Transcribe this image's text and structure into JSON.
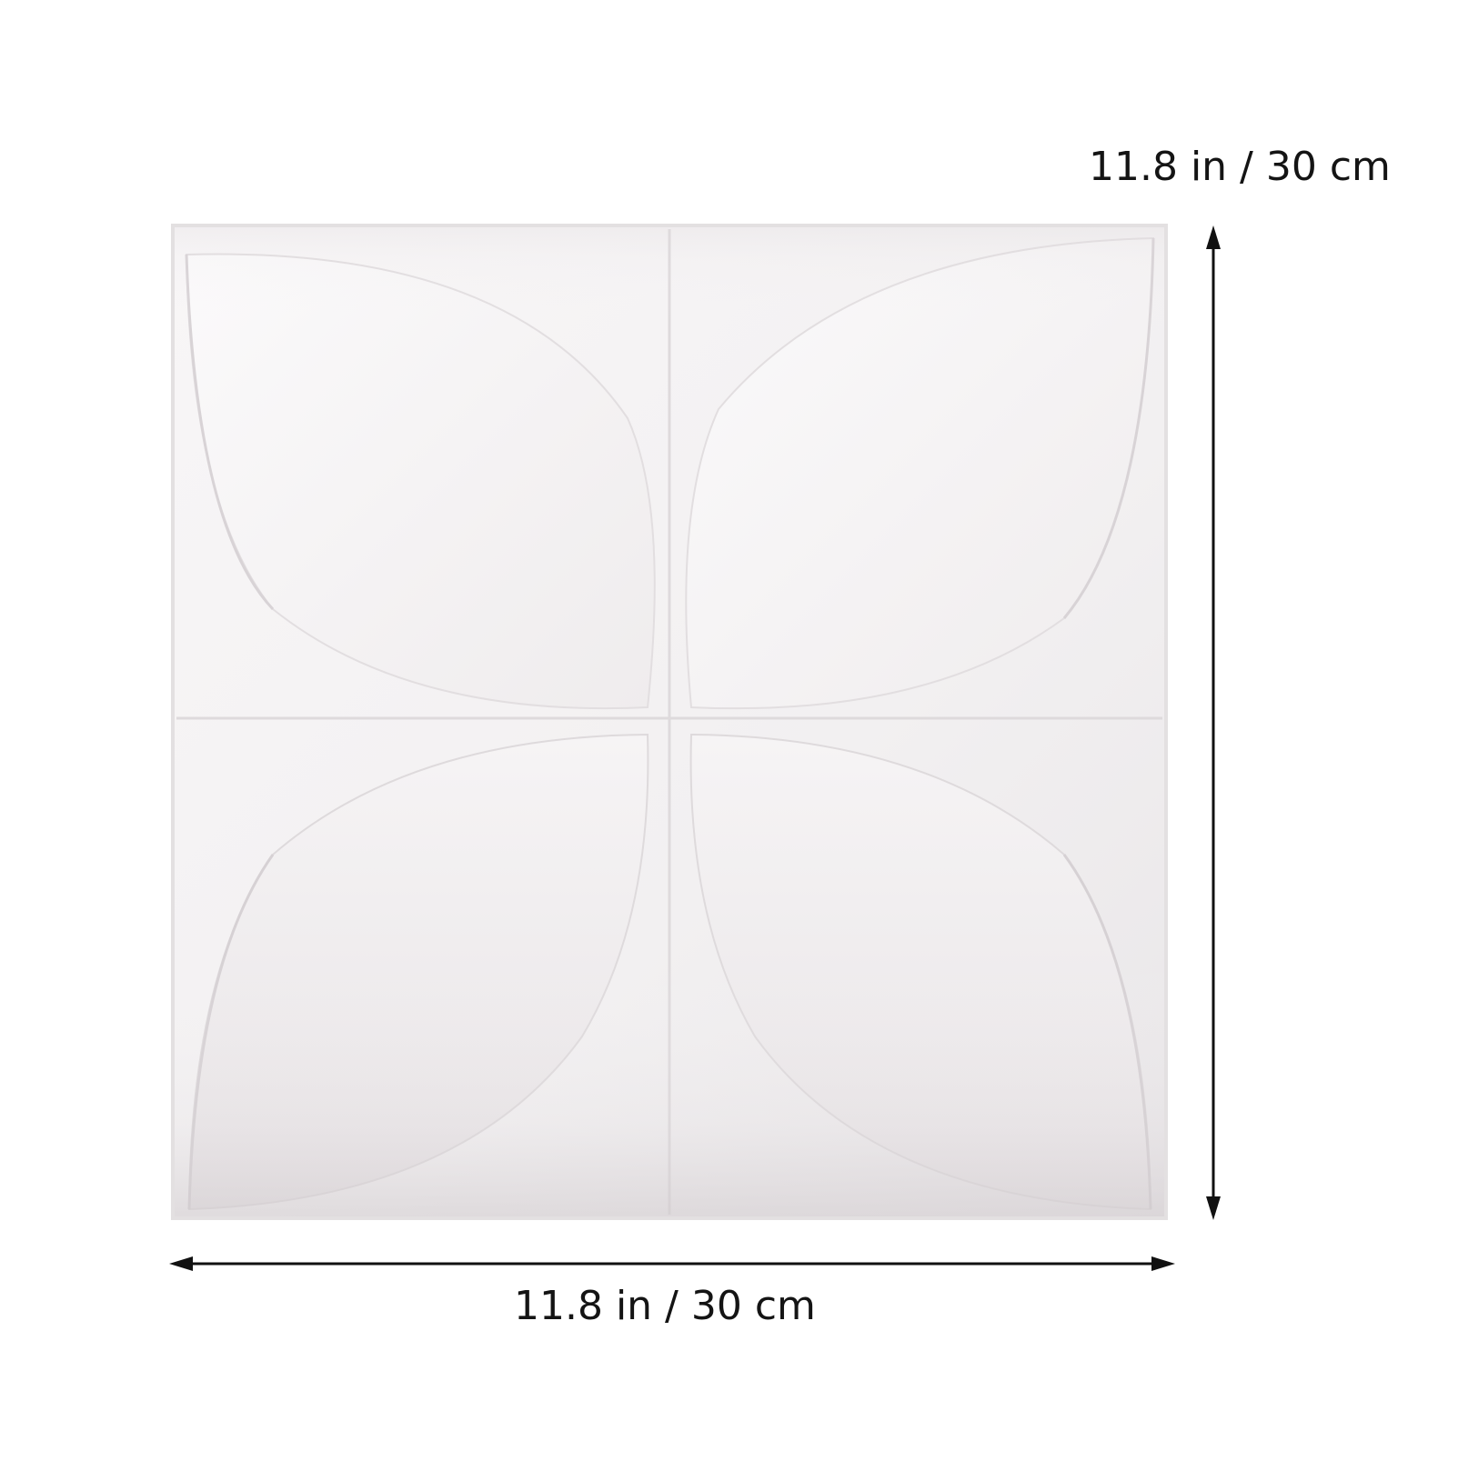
{
  "product_image": {
    "name": "white 3d petal wall panel",
    "panel_color": "#f4f2f3"
  },
  "dimensions": {
    "height_label": "11.8 in / 30 cm",
    "width_label": "11.8 in / 30 cm",
    "arrow_color": "#111111"
  }
}
